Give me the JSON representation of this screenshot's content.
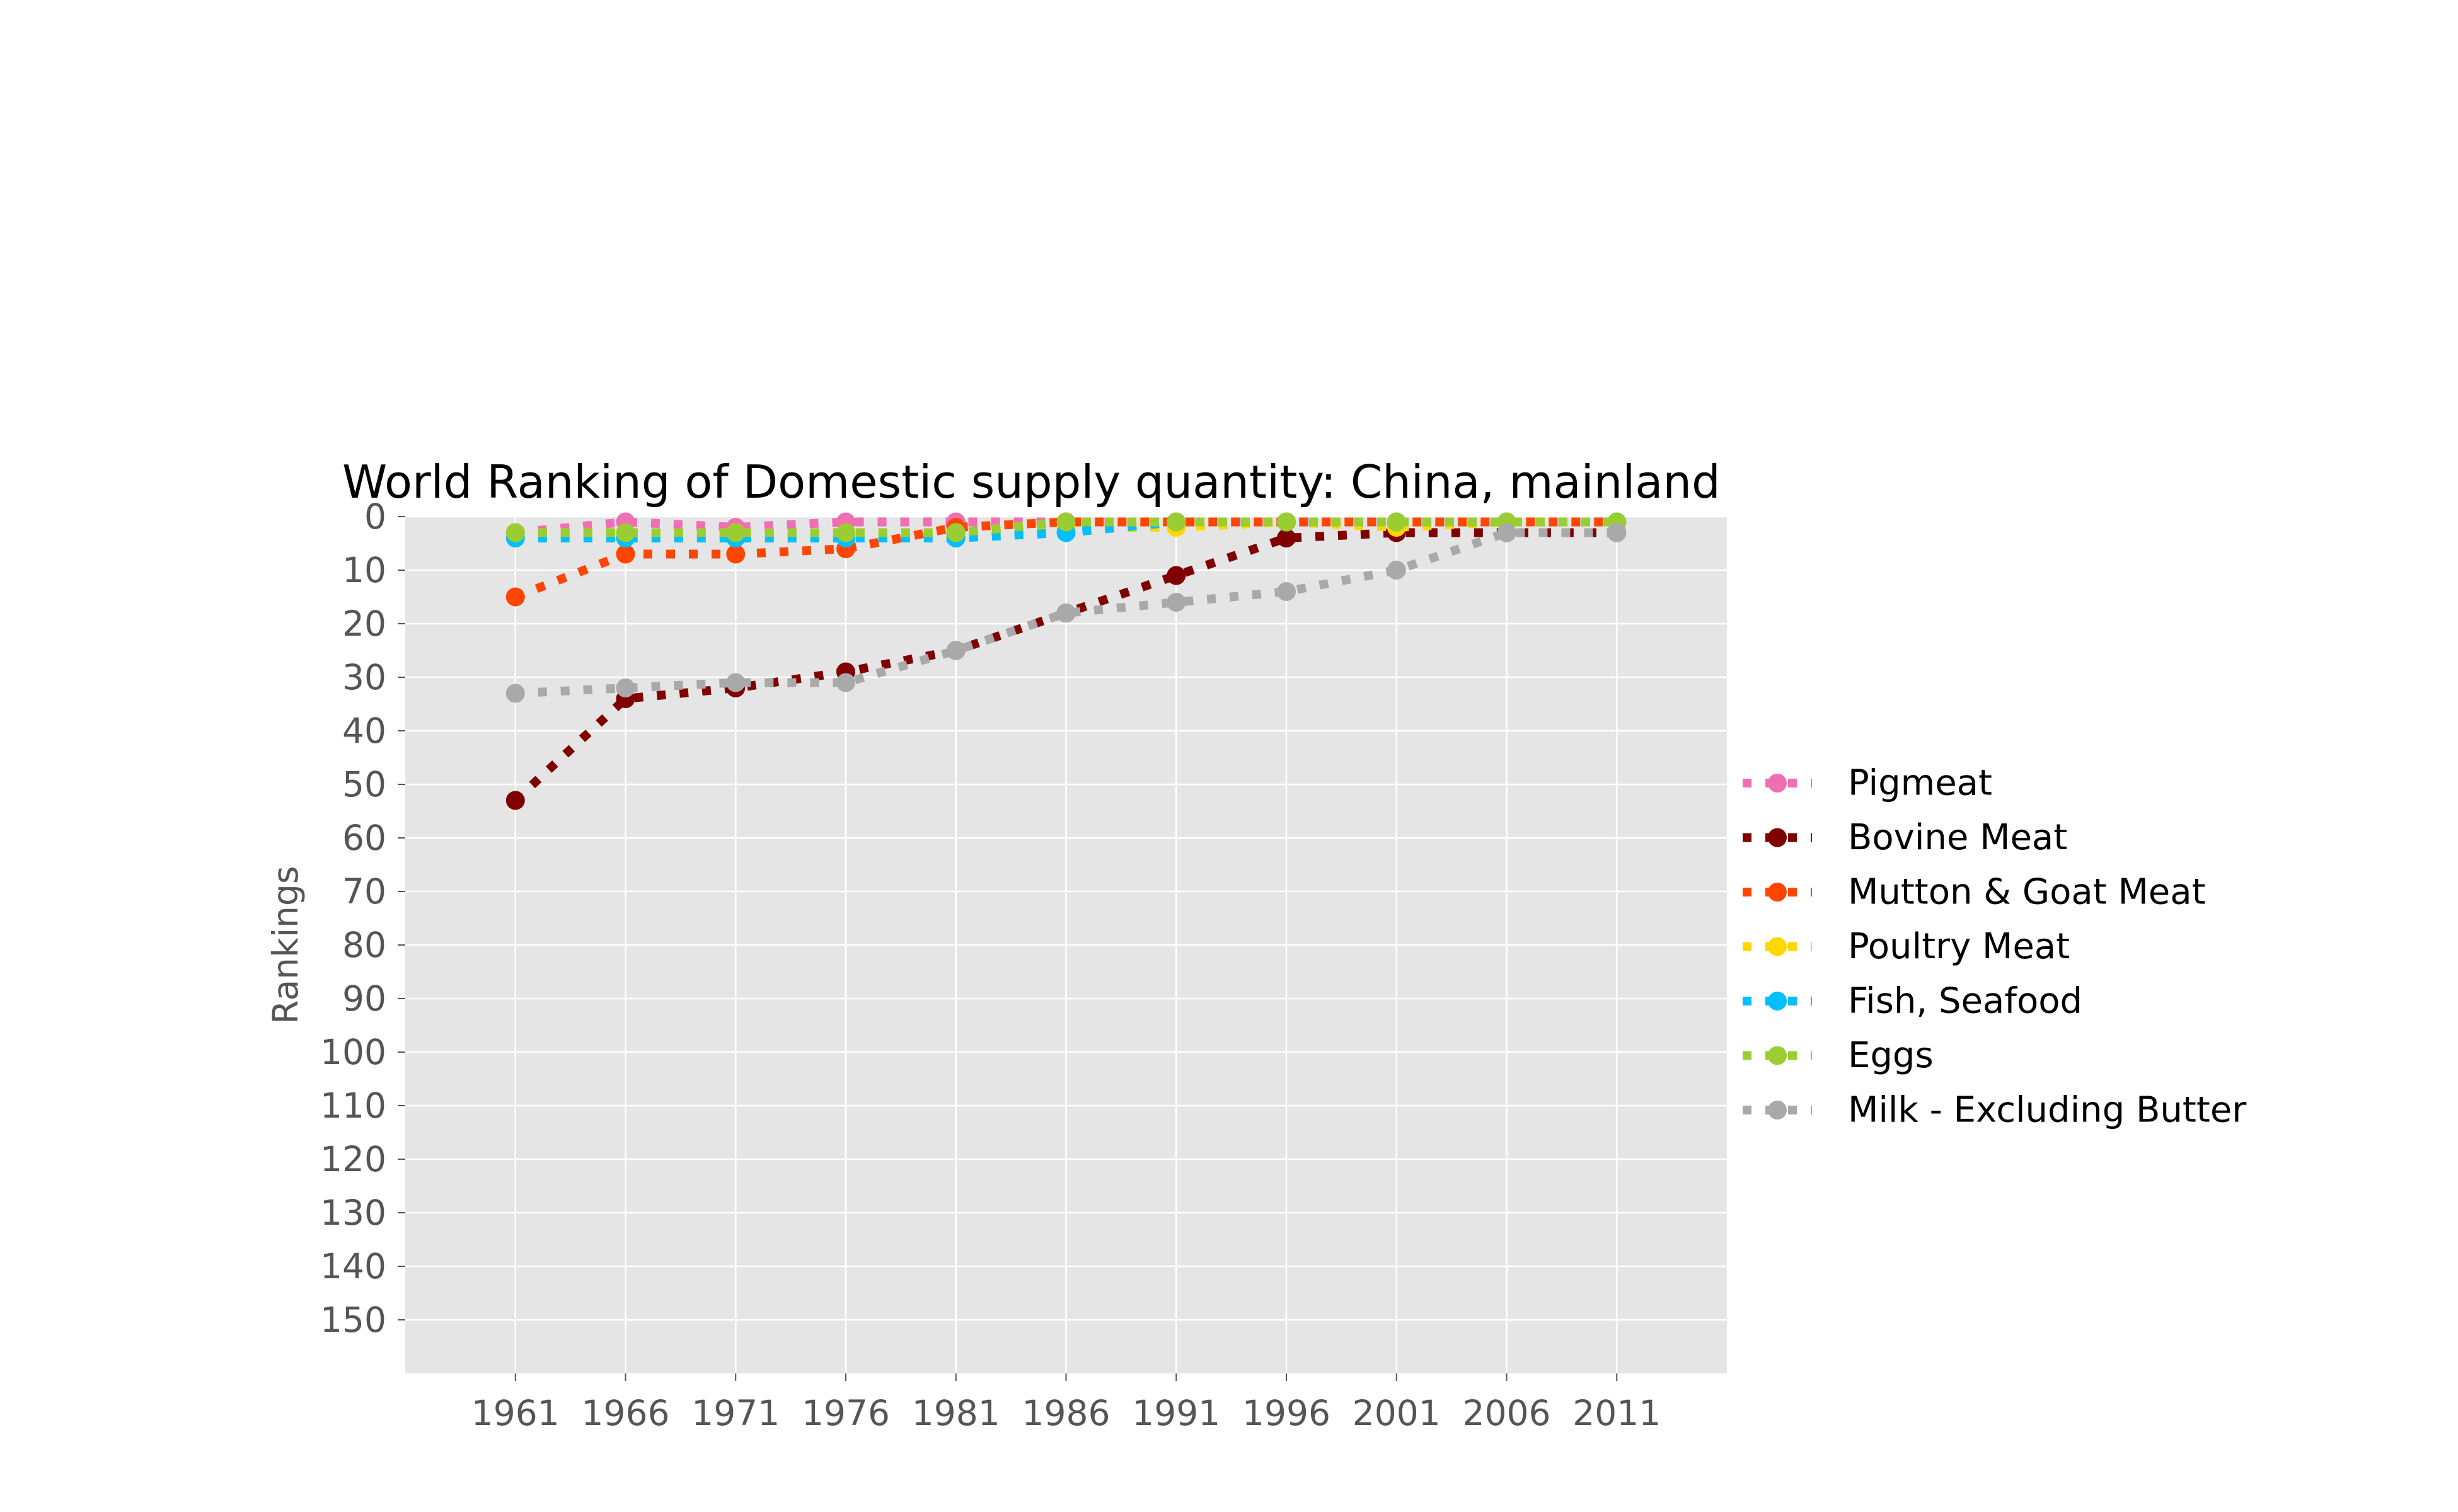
{
  "chart_data": {
    "type": "line",
    "title": "World Ranking of Domestic supply quantity: China, mainland",
    "xlabel": "",
    "ylabel": "Rankings",
    "x": [
      1961,
      1966,
      1971,
      1976,
      1981,
      1986,
      1991,
      1996,
      2001,
      2006,
      2011
    ],
    "xlim": [
      1956,
      2016
    ],
    "ylim": [
      160,
      0
    ],
    "y_inverted": true,
    "yticks": [
      0,
      10,
      20,
      30,
      40,
      50,
      60,
      70,
      80,
      90,
      100,
      110,
      120,
      130,
      140,
      150
    ],
    "grid": true,
    "legend": "right",
    "line_style": "dotted",
    "marker": "circle",
    "background": "#e5e5e5",
    "series": [
      {
        "name": "Pigmeat",
        "color": "#f06eb4",
        "values": [
          3,
          1,
          2,
          1,
          1,
          1,
          1,
          1,
          1,
          1,
          1
        ]
      },
      {
        "name": "Bovine Meat",
        "color": "#800000",
        "values": [
          53,
          34,
          32,
          29,
          25,
          18,
          11,
          4,
          3,
          3,
          3
        ]
      },
      {
        "name": "Mutton & Goat Meat",
        "color": "#ff4500",
        "values": [
          15,
          7,
          7,
          6,
          2,
          1,
          1,
          1,
          1,
          1,
          1
        ]
      },
      {
        "name": "Poultry Meat",
        "color": "#ffd700",
        "values": [
          3,
          3,
          3,
          3,
          3,
          2,
          2,
          1,
          2,
          1,
          1
        ]
      },
      {
        "name": "Fish, Seafood",
        "color": "#00bfff",
        "values": [
          4,
          4,
          4,
          4,
          4,
          3,
          1,
          1,
          1,
          1,
          1
        ]
      },
      {
        "name": "Eggs",
        "color": "#9acd32",
        "values": [
          3,
          3,
          3,
          3,
          3,
          1,
          1,
          1,
          1,
          1,
          1
        ]
      },
      {
        "name": "Milk - Excluding Butter",
        "color": "#a9a9a9",
        "values": [
          33,
          32,
          31,
          31,
          25,
          18,
          16,
          14,
          10,
          3,
          3
        ]
      }
    ]
  }
}
